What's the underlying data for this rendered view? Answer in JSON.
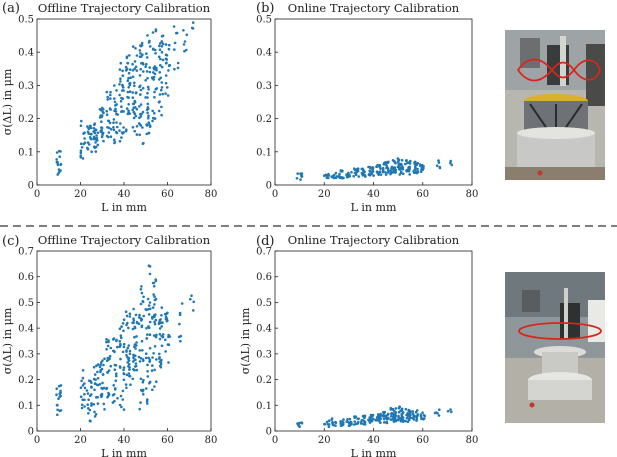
{
  "colors": {
    "marker": "#1f77b4",
    "axes": "#222222"
  },
  "photos": [
    {
      "label": "Robot photo with figure-eight trajectory",
      "trajectory": "figure-eight",
      "accent": "#d8261c"
    },
    {
      "label": "Robot photo with circular trajectory",
      "trajectory": "circle",
      "accent": "#d8261c"
    }
  ],
  "chart_data": [
    {
      "panel": "(a)",
      "type": "scatter",
      "title": "Offline Trajectory Calibration",
      "xlabel": "L in mm",
      "ylabel": "σ(ΔL) in μm",
      "xlim": [
        0,
        80
      ],
      "ylim": [
        0,
        0.5
      ],
      "xticks": [
        "0",
        "20",
        "40",
        "60",
        "80"
      ],
      "yticks": [
        "0",
        "0.1",
        "0.2",
        "0.3",
        "0.4",
        "0.5"
      ],
      "grid": false,
      "clusters": [
        {
          "x": 10,
          "y": [
            0.03,
            0.11
          ],
          "n": 16
        },
        {
          "x": 21,
          "y": [
            0.08,
            0.2
          ],
          "n": 14
        },
        {
          "x": 24,
          "y": [
            0.1,
            0.18
          ],
          "n": 18
        },
        {
          "x": 27,
          "y": [
            0.1,
            0.19
          ],
          "n": 22
        },
        {
          "x": 30,
          "y": [
            0.12,
            0.24
          ],
          "n": 22
        },
        {
          "x": 33,
          "y": [
            0.14,
            0.3
          ],
          "n": 20
        },
        {
          "x": 36,
          "y": [
            0.12,
            0.3
          ],
          "n": 22
        },
        {
          "x": 39,
          "y": [
            0.13,
            0.37
          ],
          "n": 28
        },
        {
          "x": 42,
          "y": [
            0.16,
            0.4
          ],
          "n": 30
        },
        {
          "x": 45,
          "y": [
            0.15,
            0.42
          ],
          "n": 32
        },
        {
          "x": 48,
          "y": [
            0.12,
            0.43
          ],
          "n": 34
        },
        {
          "x": 51,
          "y": [
            0.14,
            0.46
          ],
          "n": 34
        },
        {
          "x": 54,
          "y": [
            0.18,
            0.47
          ],
          "n": 32
        },
        {
          "x": 57,
          "y": [
            0.21,
            0.45
          ],
          "n": 28
        },
        {
          "x": 60,
          "y": [
            0.26,
            0.44
          ],
          "n": 18
        },
        {
          "x": 64,
          "y": [
            0.34,
            0.48
          ],
          "n": 8
        },
        {
          "x": 68,
          "y": [
            0.4,
            0.5
          ],
          "n": 6
        },
        {
          "x": 72,
          "y": [
            0.47,
            0.49
          ],
          "n": 3
        }
      ]
    },
    {
      "panel": "(b)",
      "type": "scatter",
      "title": "Online Trajectory Calibration",
      "xlabel": "L in mm",
      "ylabel": "",
      "xlim": [
        0,
        80
      ],
      "ylim": [
        0,
        0.5
      ],
      "xticks": [
        "0",
        "20",
        "40",
        "60",
        "80"
      ],
      "yticks": [
        "0",
        "0.1",
        "0.2",
        "0.3",
        "0.4",
        "0.5"
      ],
      "grid": false,
      "clusters": [
        {
          "x": 10,
          "y": [
            0.015,
            0.035
          ],
          "n": 8
        },
        {
          "x": 21,
          "y": [
            0.015,
            0.04
          ],
          "n": 8
        },
        {
          "x": 24,
          "y": [
            0.02,
            0.04
          ],
          "n": 10
        },
        {
          "x": 27,
          "y": [
            0.02,
            0.045
          ],
          "n": 12
        },
        {
          "x": 30,
          "y": [
            0.02,
            0.045
          ],
          "n": 12
        },
        {
          "x": 33,
          "y": [
            0.02,
            0.05
          ],
          "n": 12
        },
        {
          "x": 36,
          "y": [
            0.025,
            0.05
          ],
          "n": 14
        },
        {
          "x": 39,
          "y": [
            0.025,
            0.055
          ],
          "n": 16
        },
        {
          "x": 42,
          "y": [
            0.03,
            0.06
          ],
          "n": 18
        },
        {
          "x": 45,
          "y": [
            0.03,
            0.07
          ],
          "n": 22
        },
        {
          "x": 48,
          "y": [
            0.03,
            0.075
          ],
          "n": 26
        },
        {
          "x": 51,
          "y": [
            0.03,
            0.08
          ],
          "n": 26
        },
        {
          "x": 54,
          "y": [
            0.03,
            0.075
          ],
          "n": 22
        },
        {
          "x": 57,
          "y": [
            0.035,
            0.07
          ],
          "n": 16
        },
        {
          "x": 60,
          "y": [
            0.04,
            0.065
          ],
          "n": 10
        },
        {
          "x": 66,
          "y": [
            0.05,
            0.075
          ],
          "n": 5
        },
        {
          "x": 71,
          "y": [
            0.06,
            0.08
          ],
          "n": 3
        }
      ]
    },
    {
      "panel": "(c)",
      "type": "scatter",
      "title": "Offline Trajectory Calibration",
      "xlabel": "L in mm",
      "ylabel": "σ(ΔL) in μm",
      "xlim": [
        0,
        80
      ],
      "ylim": [
        0,
        0.7
      ],
      "xticks": [
        "0",
        "20",
        "40",
        "60",
        "80"
      ],
      "yticks": [
        "0",
        "0.1",
        "0.2",
        "0.3",
        "0.4",
        "0.5",
        "0.6",
        "0.7"
      ],
      "grid": false,
      "clusters": [
        {
          "x": 10,
          "y": [
            0.06,
            0.18
          ],
          "n": 16
        },
        {
          "x": 21,
          "y": [
            0.07,
            0.26
          ],
          "n": 14
        },
        {
          "x": 24,
          "y": [
            0.03,
            0.2
          ],
          "n": 18
        },
        {
          "x": 27,
          "y": [
            0.04,
            0.26
          ],
          "n": 20
        },
        {
          "x": 30,
          "y": [
            0.08,
            0.3
          ],
          "n": 22
        },
        {
          "x": 33,
          "y": [
            0.12,
            0.36
          ],
          "n": 22
        },
        {
          "x": 36,
          "y": [
            0.09,
            0.36
          ],
          "n": 22
        },
        {
          "x": 39,
          "y": [
            0.08,
            0.44
          ],
          "n": 28
        },
        {
          "x": 42,
          "y": [
            0.15,
            0.48
          ],
          "n": 30
        },
        {
          "x": 45,
          "y": [
            0.2,
            0.5
          ],
          "n": 32
        },
        {
          "x": 48,
          "y": [
            0.07,
            0.58
          ],
          "n": 34
        },
        {
          "x": 51,
          "y": [
            0.1,
            0.66
          ],
          "n": 34
        },
        {
          "x": 54,
          "y": [
            0.16,
            0.6
          ],
          "n": 32
        },
        {
          "x": 57,
          "y": [
            0.22,
            0.48
          ],
          "n": 26
        },
        {
          "x": 60,
          "y": [
            0.26,
            0.46
          ],
          "n": 16
        },
        {
          "x": 66,
          "y": [
            0.34,
            0.52
          ],
          "n": 7
        },
        {
          "x": 71,
          "y": [
            0.4,
            0.54
          ],
          "n": 4
        }
      ]
    },
    {
      "panel": "(d)",
      "type": "scatter",
      "title": "Online Trajectory Calibration",
      "xlabel": "L in mm",
      "ylabel": "σ(ΔL) in μm",
      "xlim": [
        0,
        80
      ],
      "ylim": [
        0,
        0.7
      ],
      "xticks": [
        "0",
        "20",
        "40",
        "60",
        "80"
      ],
      "yticks": [
        "0",
        "0.1",
        "0.2",
        "0.3",
        "0.4",
        "0.5",
        "0.6",
        "0.7"
      ],
      "grid": false,
      "clusters": [
        {
          "x": 10,
          "y": [
            0.015,
            0.035
          ],
          "n": 8
        },
        {
          "x": 21,
          "y": [
            0.015,
            0.045
          ],
          "n": 8
        },
        {
          "x": 24,
          "y": [
            0.02,
            0.05
          ],
          "n": 10
        },
        {
          "x": 27,
          "y": [
            0.02,
            0.05
          ],
          "n": 12
        },
        {
          "x": 30,
          "y": [
            0.02,
            0.055
          ],
          "n": 12
        },
        {
          "x": 33,
          "y": [
            0.025,
            0.06
          ],
          "n": 12
        },
        {
          "x": 36,
          "y": [
            0.025,
            0.06
          ],
          "n": 14
        },
        {
          "x": 39,
          "y": [
            0.03,
            0.065
          ],
          "n": 16
        },
        {
          "x": 42,
          "y": [
            0.03,
            0.07
          ],
          "n": 18
        },
        {
          "x": 45,
          "y": [
            0.03,
            0.08
          ],
          "n": 22
        },
        {
          "x": 48,
          "y": [
            0.035,
            0.09
          ],
          "n": 26
        },
        {
          "x": 51,
          "y": [
            0.035,
            0.095
          ],
          "n": 26
        },
        {
          "x": 54,
          "y": [
            0.035,
            0.085
          ],
          "n": 22
        },
        {
          "x": 57,
          "y": [
            0.04,
            0.08
          ],
          "n": 16
        },
        {
          "x": 60,
          "y": [
            0.045,
            0.075
          ],
          "n": 10
        },
        {
          "x": 66,
          "y": [
            0.06,
            0.09
          ],
          "n": 5
        },
        {
          "x": 71,
          "y": [
            0.07,
            0.1
          ],
          "n": 3
        }
      ]
    }
  ]
}
